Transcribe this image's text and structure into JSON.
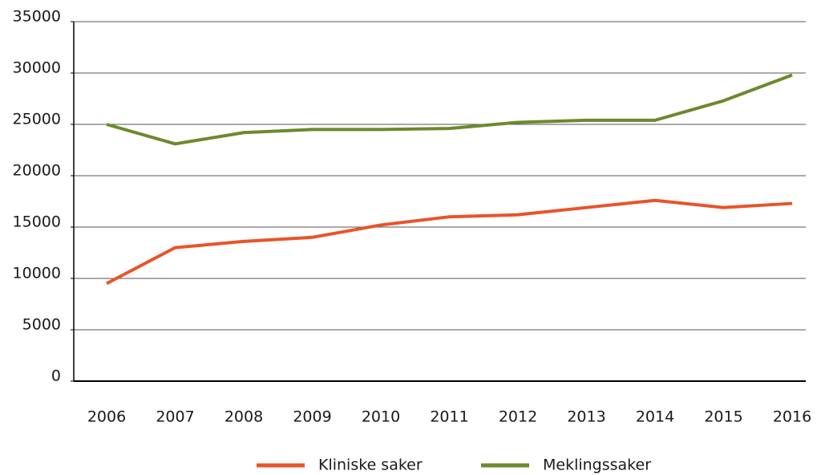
{
  "chart_data": {
    "type": "line",
    "categories": [
      "2006",
      "2007",
      "2008",
      "2009",
      "2010",
      "2011",
      "2012",
      "2013",
      "2014",
      "2015",
      "2016"
    ],
    "series": [
      {
        "name": "Kliniske saker",
        "color": "#e8542a",
        "values": [
          9500,
          13000,
          13600,
          14000,
          15200,
          16000,
          16200,
          16900,
          17600,
          16900,
          17300
        ]
      },
      {
        "name": "Meklingssaker",
        "color": "#6b8a2e",
        "values": [
          25000,
          23100,
          24200,
          24500,
          24500,
          24600,
          25200,
          25400,
          25400,
          27300,
          29800
        ]
      }
    ],
    "ylim": [
      0,
      35000
    ],
    "yticks": [
      0,
      5000,
      10000,
      15000,
      20000,
      25000,
      30000,
      35000
    ],
    "grid": true,
    "legend": "bottom"
  }
}
